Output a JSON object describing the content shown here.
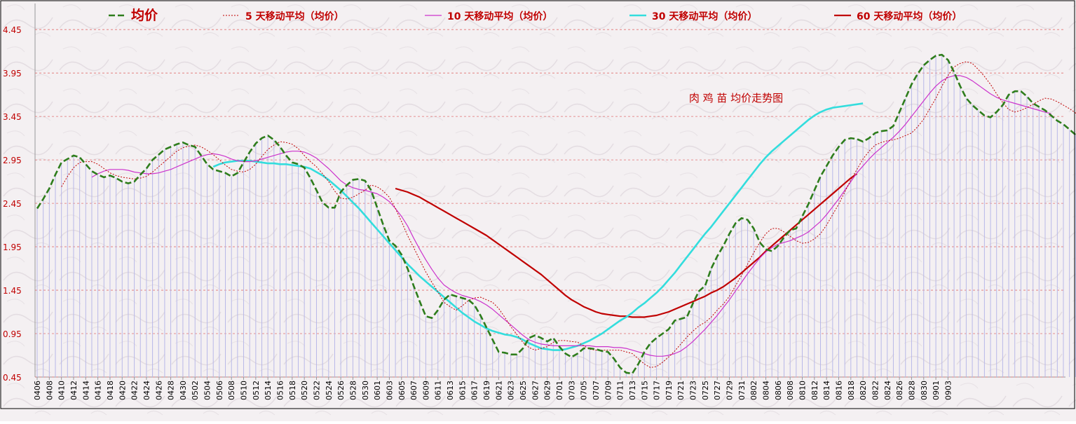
{
  "chart_data": {
    "type": "line",
    "title": "肉 鸡 苗 均价走势图",
    "colors": {
      "avg": "#2e7d1c",
      "ma5": "#c00000",
      "ma10": "#cc33cc",
      "ma30": "#33dddd",
      "ma60": "#c00000",
      "stem": "#b8b8e8",
      "grid": "#e07070",
      "label": "#c00000"
    },
    "legend": [
      "均价",
      "5 天移动平均（均价）",
      "10 天移动平均（均价）",
      "30 天移动平均（均价）",
      "60 天移动平均（均价）"
    ],
    "legend_position": "top",
    "grid": true,
    "ylim": [
      0.45,
      4.75
    ],
    "yticks": [
      "0.45",
      "0.95",
      "1.45",
      "1.95",
      "2.45",
      "2.95",
      "3.45",
      "3.95",
      "4.45"
    ],
    "xtick_labels": [
      "0406",
      "0408",
      "0410",
      "0412",
      "0414",
      "0416",
      "0418",
      "0420",
      "0422",
      "0424",
      "0426",
      "0428",
      "0430",
      "0502",
      "0504",
      "0506",
      "0508",
      "0510",
      "0512",
      "0514",
      "0516",
      "0518",
      "0520",
      "0522",
      "0524",
      "0526",
      "0528",
      "0530",
      "0601",
      "0603",
      "0605",
      "0607",
      "0609",
      "0611",
      "0613",
      "0615",
      "0617",
      "0619",
      "0621",
      "0623",
      "0625",
      "0627",
      "0629",
      "0701",
      "0703",
      "0705",
      "0707",
      "0709",
      "0711",
      "0713",
      "0715",
      "0717",
      "0719",
      "0721",
      "0723",
      "0725",
      "0727",
      "0729",
      "0731",
      "0802",
      "0804",
      "0806",
      "0808",
      "0810",
      "0812",
      "0814",
      "0816",
      "0818",
      "0820",
      "0822",
      "0824",
      "0826",
      "0828",
      "0830",
      "0901",
      "0903"
    ],
    "series": [
      {
        "name": "均价",
        "key": "avg",
        "start": 0,
        "values": [
          2.39,
          2.5,
          2.62,
          2.78,
          2.92,
          2.96,
          3.0,
          2.98,
          2.9,
          2.82,
          2.78,
          2.75,
          2.77,
          2.74,
          2.7,
          2.68,
          2.7,
          2.78,
          2.85,
          2.95,
          3.01,
          3.07,
          3.1,
          3.13,
          3.15,
          3.12,
          3.1,
          3.0,
          2.9,
          2.84,
          2.82,
          2.8,
          2.76,
          2.8,
          2.92,
          3.04,
          3.14,
          3.2,
          3.23,
          3.18,
          3.1,
          3.0,
          2.92,
          2.9,
          2.86,
          2.74,
          2.6,
          2.46,
          2.4,
          2.4,
          2.58,
          2.66,
          2.72,
          2.73,
          2.71,
          2.6,
          2.4,
          2.2,
          2.02,
          1.96,
          1.86,
          1.7,
          1.5,
          1.32,
          1.15,
          1.13,
          1.22,
          1.34,
          1.4,
          1.38,
          1.36,
          1.34,
          1.28,
          1.16,
          1.02,
          0.88,
          0.74,
          0.73,
          0.71,
          0.71,
          0.78,
          0.9,
          0.93,
          0.9,
          0.86,
          0.9,
          0.8,
          0.72,
          0.68,
          0.72,
          0.78,
          0.78,
          0.77,
          0.75,
          0.74,
          0.66,
          0.56,
          0.5,
          0.49,
          0.6,
          0.74,
          0.84,
          0.9,
          0.95,
          1.0,
          1.1,
          1.12,
          1.14,
          1.3,
          1.44,
          1.5,
          1.7,
          1.84,
          1.96,
          2.1,
          2.22,
          2.28,
          2.26,
          2.16,
          2.0,
          1.92,
          1.9,
          1.96,
          2.06,
          2.14,
          2.16,
          2.3,
          2.44,
          2.6,
          2.76,
          2.88,
          3.0,
          3.1,
          3.18,
          3.2,
          3.19,
          3.16,
          3.2,
          3.26,
          3.28,
          3.29,
          3.34,
          3.5,
          3.66,
          3.82,
          3.94,
          4.04,
          4.1,
          4.15,
          4.16,
          4.1,
          3.96,
          3.8,
          3.66,
          3.58,
          3.52,
          3.46,
          3.44,
          3.5,
          3.58,
          3.7,
          3.74,
          3.74,
          3.68,
          3.6,
          3.56,
          3.52,
          3.46,
          3.4,
          3.36,
          3.3,
          3.24
        ]
      },
      {
        "name": "5 天移动平均（均价）",
        "key": "ma5",
        "start": 4,
        "values": [
          2.64,
          2.76,
          2.86,
          2.92,
          2.93,
          2.93,
          2.9,
          2.85,
          2.8,
          2.77,
          2.75,
          2.74,
          2.73,
          2.74,
          2.76,
          2.81,
          2.87,
          2.93,
          2.99,
          3.05,
          3.09,
          3.11,
          3.12,
          3.1,
          3.06,
          3.01,
          2.95,
          2.89,
          2.84,
          2.82,
          2.81,
          2.84,
          2.9,
          2.99,
          3.07,
          3.12,
          3.16,
          3.15,
          3.13,
          3.08,
          3.0,
          2.93,
          2.87,
          2.79,
          2.7,
          2.59,
          2.51,
          2.5,
          2.52,
          2.56,
          2.6,
          2.66,
          2.64,
          2.59,
          2.52,
          2.39,
          2.24,
          2.08,
          1.94,
          1.8,
          1.66,
          1.54,
          1.43,
          1.31,
          1.26,
          1.22,
          1.27,
          1.33,
          1.36,
          1.37,
          1.34,
          1.31,
          1.24,
          1.14,
          1.03,
          0.94,
          0.85,
          0.79,
          0.76,
          0.78,
          0.8,
          0.85,
          0.87,
          0.87,
          0.86,
          0.85,
          0.81,
          0.77,
          0.76,
          0.76,
          0.76,
          0.76,
          0.76,
          0.74,
          0.72,
          0.66,
          0.6,
          0.56,
          0.57,
          0.62,
          0.68,
          0.75,
          0.83,
          0.91,
          0.98,
          1.04,
          1.08,
          1.14,
          1.22,
          1.29,
          1.38,
          1.5,
          1.62,
          1.75,
          1.88,
          2.0,
          2.1,
          2.16,
          2.16,
          2.12,
          2.07,
          2.02,
          1.99,
          2.0,
          2.04,
          2.1,
          2.2,
          2.32,
          2.44,
          2.58,
          2.72,
          2.84,
          2.96,
          3.05,
          3.12,
          3.15,
          3.17,
          3.18,
          3.2,
          3.23,
          3.26,
          3.33,
          3.42,
          3.54,
          3.66,
          3.8,
          3.92,
          4.02,
          4.06,
          4.08,
          4.06,
          3.99,
          3.91,
          3.82,
          3.71,
          3.61,
          3.53,
          3.5,
          3.52,
          3.55,
          3.59,
          3.63,
          3.66,
          3.65,
          3.62,
          3.58,
          3.54,
          3.49,
          3.44,
          3.39,
          3.35,
          3.3
        ]
      },
      {
        "name": "10 天移动平均（均价）",
        "key": "ma10",
        "start": 9,
        "values": [
          2.75,
          2.79,
          2.82,
          2.84,
          2.84,
          2.84,
          2.83,
          2.81,
          2.8,
          2.79,
          2.79,
          2.8,
          2.82,
          2.84,
          2.87,
          2.9,
          2.93,
          2.96,
          2.99,
          3.01,
          3.02,
          3.01,
          2.99,
          2.96,
          2.94,
          2.93,
          2.93,
          2.94,
          2.96,
          2.98,
          3.0,
          3.02,
          3.04,
          3.05,
          3.05,
          3.04,
          3.01,
          2.97,
          2.91,
          2.85,
          2.78,
          2.71,
          2.66,
          2.63,
          2.61,
          2.6,
          2.58,
          2.56,
          2.52,
          2.47,
          2.39,
          2.3,
          2.19,
          2.05,
          1.92,
          1.8,
          1.69,
          1.59,
          1.51,
          1.46,
          1.42,
          1.39,
          1.37,
          1.35,
          1.32,
          1.28,
          1.23,
          1.17,
          1.11,
          1.05,
          0.99,
          0.93,
          0.88,
          0.85,
          0.83,
          0.82,
          0.81,
          0.81,
          0.81,
          0.81,
          0.81,
          0.81,
          0.81,
          0.8,
          0.8,
          0.8,
          0.79,
          0.79,
          0.78,
          0.76,
          0.74,
          0.72,
          0.7,
          0.69,
          0.69,
          0.7,
          0.72,
          0.75,
          0.8,
          0.86,
          0.93,
          1.0,
          1.08,
          1.16,
          1.25,
          1.34,
          1.44,
          1.54,
          1.64,
          1.73,
          1.82,
          1.89,
          1.94,
          1.98,
          2.0,
          2.02,
          2.05,
          2.08,
          2.12,
          2.18,
          2.24,
          2.32,
          2.41,
          2.5,
          2.6,
          2.7,
          2.8,
          2.88,
          2.96,
          3.03,
          3.09,
          3.15,
          3.21,
          3.28,
          3.36,
          3.45,
          3.54,
          3.63,
          3.72,
          3.8,
          3.86,
          3.9,
          3.92,
          3.92,
          3.9,
          3.86,
          3.81,
          3.76,
          3.71,
          3.67,
          3.64,
          3.62,
          3.6,
          3.58,
          3.56,
          3.54,
          3.52,
          3.5,
          3.48
        ]
      },
      {
        "name": "30 天移动平均（均价）",
        "key": "ma30",
        "start": 29,
        "values": [
          2.87,
          2.9,
          2.92,
          2.93,
          2.94,
          2.94,
          2.94,
          2.93,
          2.92,
          2.91,
          2.91,
          2.9,
          2.9,
          2.89,
          2.88,
          2.87,
          2.85,
          2.81,
          2.77,
          2.72,
          2.66,
          2.6,
          2.53,
          2.46,
          2.39,
          2.31,
          2.23,
          2.15,
          2.07,
          1.99,
          1.91,
          1.83,
          1.75,
          1.68,
          1.61,
          1.55,
          1.49,
          1.43,
          1.37,
          1.31,
          1.25,
          1.19,
          1.14,
          1.09,
          1.05,
          1.01,
          0.98,
          0.96,
          0.94,
          0.93,
          0.91,
          0.88,
          0.84,
          0.81,
          0.78,
          0.77,
          0.76,
          0.76,
          0.77,
          0.79,
          0.81,
          0.84,
          0.87,
          0.91,
          0.95,
          1.0,
          1.05,
          1.1,
          1.14,
          1.19,
          1.25,
          1.3,
          1.36,
          1.42,
          1.49,
          1.57,
          1.65,
          1.74,
          1.83,
          1.92,
          2.01,
          2.1,
          2.18,
          2.27,
          2.36,
          2.45,
          2.54,
          2.63,
          2.72,
          2.81,
          2.9,
          2.98,
          3.05,
          3.11,
          3.17,
          3.23,
          3.29,
          3.35,
          3.41,
          3.46,
          3.5,
          3.53,
          3.55,
          3.56,
          3.57,
          3.58,
          3.59,
          3.6
        ]
      },
      {
        "name": "60 天移动平均（均价）",
        "key": "ma60",
        "start": 59,
        "values": [
          2.62,
          2.6,
          2.58,
          2.55,
          2.52,
          2.48,
          2.44,
          2.4,
          2.36,
          2.32,
          2.28,
          2.24,
          2.2,
          2.16,
          2.12,
          2.08,
          2.03,
          1.98,
          1.93,
          1.88,
          1.83,
          1.78,
          1.73,
          1.68,
          1.63,
          1.57,
          1.51,
          1.45,
          1.39,
          1.34,
          1.3,
          1.26,
          1.23,
          1.2,
          1.18,
          1.17,
          1.16,
          1.15,
          1.15,
          1.14,
          1.14,
          1.14,
          1.15,
          1.16,
          1.18,
          1.2,
          1.23,
          1.26,
          1.29,
          1.32,
          1.35,
          1.38,
          1.42,
          1.45,
          1.49,
          1.54,
          1.59,
          1.65,
          1.71,
          1.77,
          1.83,
          1.9,
          1.96,
          2.02,
          2.08,
          2.14,
          2.2,
          2.26,
          2.32,
          2.38,
          2.44,
          2.5,
          2.56,
          2.62,
          2.68,
          2.74,
          2.79
        ]
      }
    ],
    "x_count": 170
  }
}
